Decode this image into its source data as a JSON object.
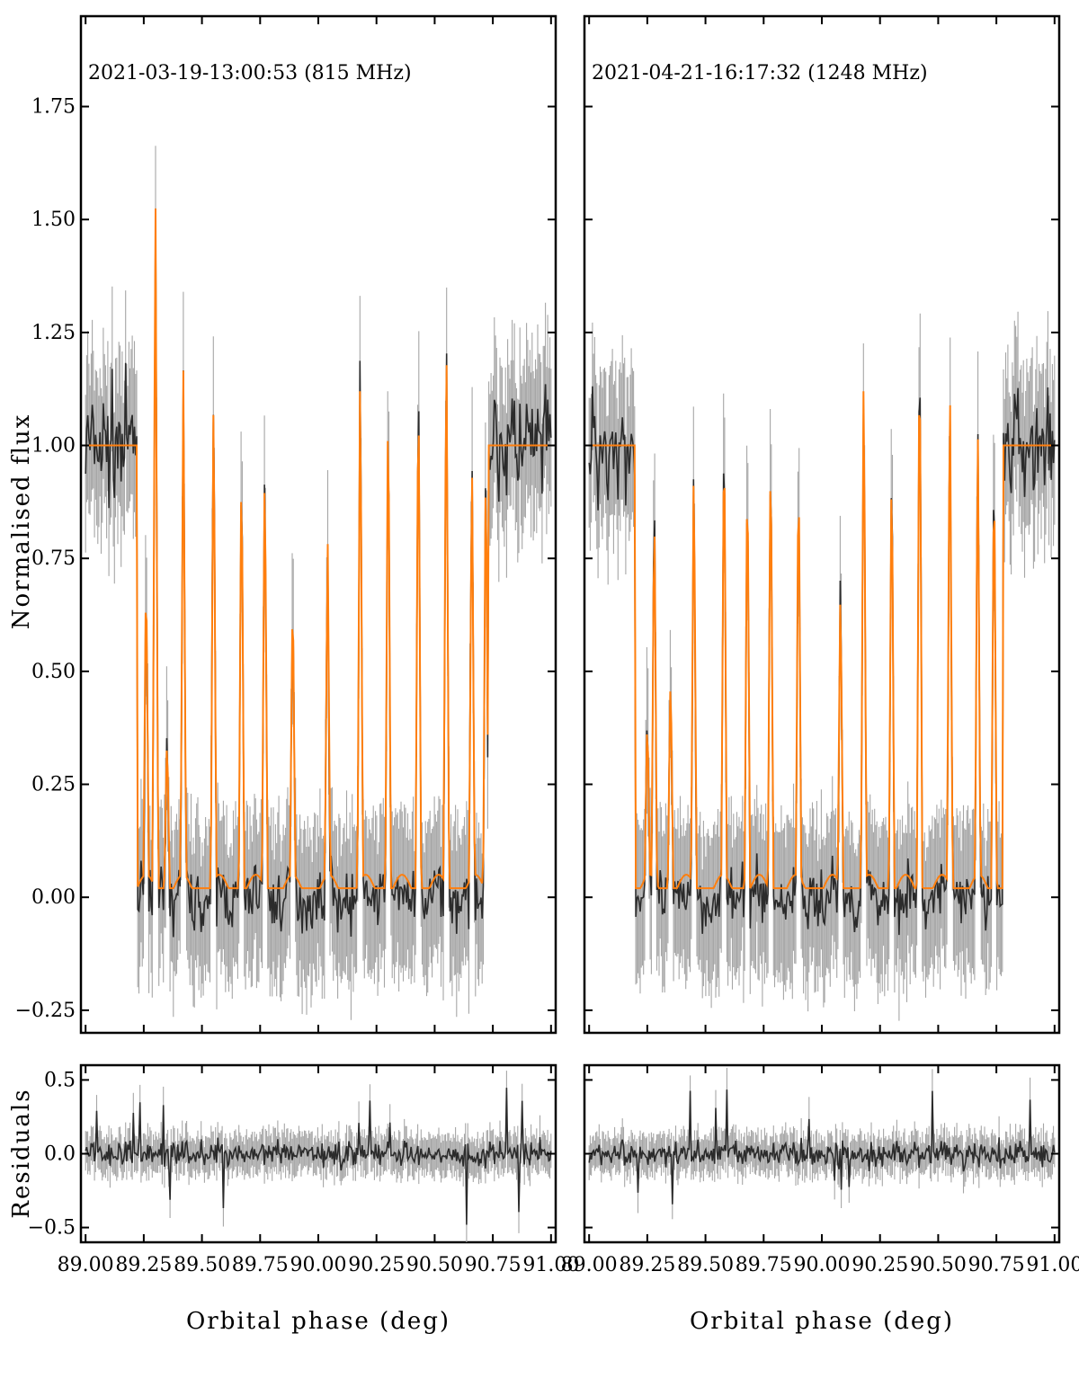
{
  "chart_data": [
    {
      "type": "line",
      "panel": "top-left",
      "title": "2021-03-19-13:00:53 (815 MHz)",
      "xlabel": "Orbital phase (deg)",
      "ylabel": "Normalised flux",
      "xlim": [
        88.98,
        91.02
      ],
      "ylim": [
        -0.3,
        1.95
      ],
      "yticks": [
        -0.25,
        0.0,
        0.25,
        0.5,
        0.75,
        1.0,
        1.25,
        1.5,
        1.75
      ],
      "yticklabels": [
        "−0.25",
        "0.00",
        "0.25",
        "0.50",
        "0.75",
        "1.00",
        "1.25",
        "1.50",
        "1.75"
      ],
      "grid": false,
      "colors": {
        "data": "#2b2b2b",
        "errorbars": "#a6a6a6",
        "model": "#ff7f0e"
      },
      "eclipse_start": 89.22,
      "eclipse_end": 90.73,
      "spikes": [
        {
          "x": 89.26,
          "y": 0.75
        },
        {
          "x": 89.3,
          "y": 1.6
        },
        {
          "x": 89.35,
          "y": 0.35
        },
        {
          "x": 89.42,
          "y": 1.15
        },
        {
          "x": 89.55,
          "y": 1.15
        },
        {
          "x": 89.67,
          "y": 1.0
        },
        {
          "x": 89.77,
          "y": 1.0
        },
        {
          "x": 89.89,
          "y": 0.7
        },
        {
          "x": 90.04,
          "y": 0.8
        },
        {
          "x": 90.18,
          "y": 1.2
        },
        {
          "x": 90.3,
          "y": 1.15
        },
        {
          "x": 90.43,
          "y": 1.2
        },
        {
          "x": 90.55,
          "y": 1.3
        },
        {
          "x": 90.66,
          "y": 1.0
        },
        {
          "x": 90.72,
          "y": 1.0
        }
      ]
    },
    {
      "type": "line",
      "panel": "top-right",
      "title": "2021-04-21-16:17:32 (1248 MHz)",
      "xlabel": "Orbital phase (deg)",
      "ylabel": "Normalised flux",
      "xlim": [
        88.98,
        91.02
      ],
      "ylim": [
        -0.3,
        1.95
      ],
      "grid": false,
      "colors": {
        "data": "#2b2b2b",
        "errorbars": "#a6a6a6",
        "model": "#ff7f0e"
      },
      "eclipse_start": 89.2,
      "eclipse_end": 90.78,
      "spikes": [
        {
          "x": 89.25,
          "y": 0.4
        },
        {
          "x": 89.28,
          "y": 0.9
        },
        {
          "x": 89.35,
          "y": 0.5
        },
        {
          "x": 89.45,
          "y": 1.0
        },
        {
          "x": 89.58,
          "y": 1.1
        },
        {
          "x": 89.68,
          "y": 1.0
        },
        {
          "x": 89.78,
          "y": 1.05
        },
        {
          "x": 89.9,
          "y": 1.0
        },
        {
          "x": 90.08,
          "y": 0.7
        },
        {
          "x": 90.18,
          "y": 1.2
        },
        {
          "x": 90.3,
          "y": 1.0
        },
        {
          "x": 90.42,
          "y": 1.3
        },
        {
          "x": 90.55,
          "y": 1.2
        },
        {
          "x": 90.67,
          "y": 1.05
        },
        {
          "x": 90.74,
          "y": 1.0
        }
      ]
    },
    {
      "type": "line",
      "panel": "bottom-left",
      "xlabel": "Orbital phase (deg)",
      "ylabel": "Residuals",
      "xlim": [
        88.98,
        91.02
      ],
      "ylim": [
        -0.6,
        0.6
      ],
      "yticks": [
        -0.5,
        0.0,
        0.5
      ],
      "yticklabels": [
        "−0.5",
        "0.0",
        "0.5"
      ],
      "xticks": [
        89.0,
        89.25,
        89.5,
        89.75,
        90.0,
        90.25,
        90.5,
        90.75,
        91.0
      ],
      "xticklabels": [
        "89.00",
        "89.25",
        "89.50",
        "89.75",
        "90.00",
        "90.25",
        "90.50",
        "90.75",
        "91.00"
      ],
      "grid": false,
      "colors": {
        "data": "#2b2b2b",
        "errorbars": "#a6a6a6"
      }
    },
    {
      "type": "line",
      "panel": "bottom-right",
      "xlabel": "Orbital phase (deg)",
      "ylabel": "Residuals",
      "xlim": [
        88.98,
        91.02
      ],
      "ylim": [
        -0.6,
        0.6
      ],
      "xticks": [
        89.0,
        89.25,
        89.5,
        89.75,
        90.0,
        90.25,
        90.5,
        90.75,
        91.0
      ],
      "xticklabels": [
        "89.00",
        "89.25",
        "89.50",
        "89.75",
        "90.00",
        "90.25",
        "90.50",
        "90.75",
        "91.00"
      ],
      "grid": false,
      "colors": {
        "data": "#2b2b2b",
        "errorbars": "#a6a6a6"
      }
    }
  ],
  "labels": {
    "ylabel_top": "Normalised flux",
    "ylabel_bottom": "Residuals",
    "xlabel": "Orbital phase (deg)",
    "title_left": "2021-03-19-13:00:53 (815 MHz)",
    "title_right": "2021-04-21-16:17:32 (1248 MHz)"
  }
}
